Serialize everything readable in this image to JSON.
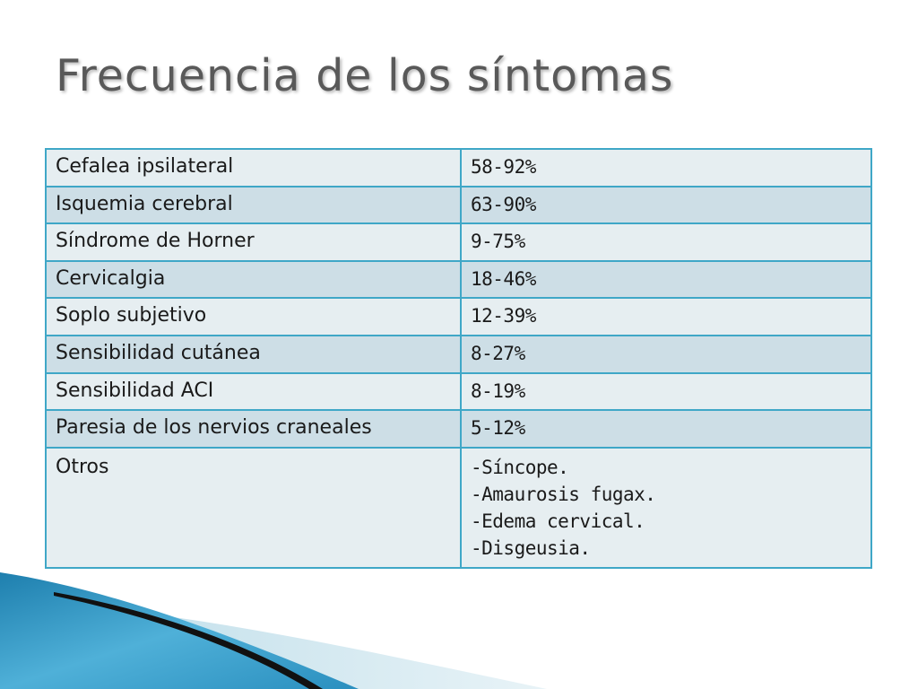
{
  "slide": {
    "title": "Frecuencia de los síntomas"
  },
  "table": {
    "rows": [
      {
        "symptom": "Cefalea ipsilateral",
        "frequency": "58-92%"
      },
      {
        "symptom": "Isquemia cerebral",
        "frequency": "63-90%"
      },
      {
        "symptom": "Síndrome de Horner",
        "frequency": "9-75%"
      },
      {
        "symptom": "Cervicalgia",
        "frequency": "18-46%"
      },
      {
        "symptom": "Soplo subjetivo",
        "frequency": "12-39%"
      },
      {
        "symptom": "Sensibilidad cutánea",
        "frequency": "8-27%"
      },
      {
        "symptom": "Sensibilidad ACI",
        "frequency": "8-19%"
      },
      {
        "symptom": "Paresia de los nervios craneales",
        "frequency": "5-12%"
      }
    ],
    "other": {
      "label": "Otros",
      "items": [
        "-Síncope.",
        "-Amaurosis fugax.",
        "-Edema cervical.",
        "-Disgeusia."
      ]
    }
  },
  "colors": {
    "title": "#595959",
    "border": "#3fa7c7",
    "row_light": "#e6eef1",
    "row_dark": "#cddee6",
    "accent_blue": "#2a8fbf"
  }
}
